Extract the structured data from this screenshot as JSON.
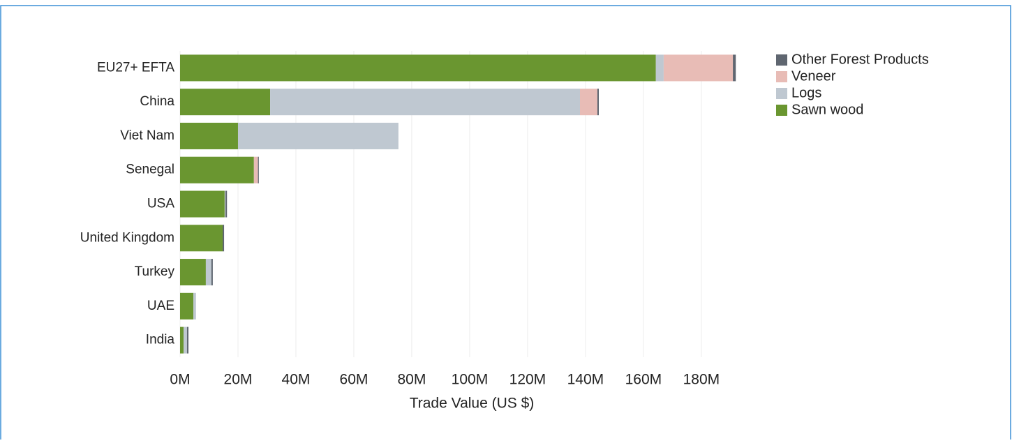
{
  "chart_data": {
    "type": "stacked-bar-horizontal",
    "categories": [
      "EU27+ EFTA",
      "China",
      "Viet Nam",
      "Senegal",
      "USA",
      "United Kingdom",
      "Turkey",
      "UAE",
      "India"
    ],
    "series": [
      {
        "name": "Sawn wood",
        "color": "#6a9630",
        "values": [
          164.3,
          31.1,
          20.0,
          25.5,
          15.4,
          14.7,
          8.9,
          4.6,
          1.2
        ]
      },
      {
        "name": "Logs",
        "color": "#bfc8d1",
        "values": [
          2.7,
          107.0,
          55.4,
          0,
          0.3,
          0,
          1.9,
          0.9,
          1.2
        ]
      },
      {
        "name": "Veneer",
        "color": "#e8bcb6",
        "values": [
          23.9,
          6.0,
          0,
          1.4,
          0,
          0,
          0,
          0,
          0
        ]
      },
      {
        "name": "Other Forest Products",
        "color": "#5f6670",
        "values": [
          1.0,
          0.5,
          0,
          0.3,
          0.5,
          0.5,
          0.5,
          0,
          0.5
        ]
      }
    ],
    "x_label": "Trade Value (US $)",
    "xlim": [
      0,
      201
    ],
    "xticks": [
      {
        "value": 0,
        "label": "0M"
      },
      {
        "value": 20,
        "label": "20M"
      },
      {
        "value": 40,
        "label": "40M"
      },
      {
        "value": 60,
        "label": "60M"
      },
      {
        "value": 80,
        "label": "80M"
      },
      {
        "value": 100,
        "label": "100M"
      },
      {
        "value": 120,
        "label": "120M"
      },
      {
        "value": 140,
        "label": "140M"
      },
      {
        "value": 160,
        "label": "160M"
      },
      {
        "value": 180,
        "label": "180M"
      }
    ],
    "grid": true,
    "legend": "right"
  }
}
